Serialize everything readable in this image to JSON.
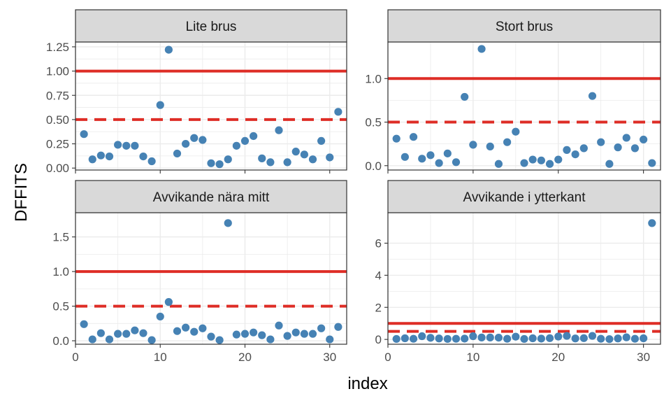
{
  "chart_data": {
    "type": "scatter",
    "xlabel": "index",
    "ylabel": "DFFITS",
    "x_ticks": [
      0,
      10,
      20,
      30
    ],
    "xlim": [
      0,
      32
    ],
    "grid": true,
    "colors": {
      "points": "#4682B4",
      "reference_lines": "#DE2D26",
      "strip_bg": "#D9D9D9",
      "grid": "#EBEBEB",
      "border": "#333333"
    },
    "reference_lines": [
      {
        "y": 1.0,
        "style": "solid"
      },
      {
        "y": 0.5,
        "style": "dashed"
      }
    ],
    "panels": [
      {
        "title": "Lite brus",
        "ylim": [
          -0.02,
          1.3
        ],
        "y_ticks": [
          "0.00",
          "0.25",
          "0.50",
          "0.75",
          "1.00",
          "1.25"
        ],
        "x": [
          1,
          2,
          3,
          4,
          5,
          6,
          7,
          8,
          9,
          10,
          11,
          12,
          13,
          14,
          15,
          16,
          17,
          18,
          19,
          20,
          21,
          22,
          23,
          24,
          25,
          26,
          27,
          28,
          29,
          30,
          31
        ],
        "y": [
          0.35,
          0.09,
          0.13,
          0.12,
          0.24,
          0.23,
          0.23,
          0.12,
          0.07,
          0.65,
          1.22,
          0.15,
          0.25,
          0.31,
          0.29,
          0.05,
          0.04,
          0.09,
          0.23,
          0.28,
          0.33,
          0.1,
          0.06,
          0.39,
          0.06,
          0.17,
          0.14,
          0.09,
          0.28,
          0.11,
          0.58
        ]
      },
      {
        "title": "Stort brus",
        "ylim": [
          -0.05,
          1.42
        ],
        "y_ticks": [
          "0.0",
          "0.5",
          "1.0"
        ],
        "x": [
          1,
          2,
          3,
          4,
          5,
          6,
          7,
          8,
          9,
          10,
          11,
          12,
          13,
          14,
          15,
          16,
          17,
          18,
          19,
          20,
          21,
          22,
          23,
          24,
          25,
          26,
          27,
          28,
          29,
          30,
          31
        ],
        "y": [
          0.31,
          0.1,
          0.33,
          0.08,
          0.12,
          0.03,
          0.14,
          0.04,
          0.79,
          0.24,
          1.34,
          0.22,
          0.02,
          0.27,
          0.39,
          0.03,
          0.07,
          0.06,
          0.02,
          0.07,
          0.18,
          0.13,
          0.2,
          0.8,
          0.27,
          0.02,
          0.21,
          0.32,
          0.2,
          0.3,
          0.03
        ]
      },
      {
        "title": "Avvikande nära mitt",
        "ylim": [
          -0.05,
          1.85
        ],
        "y_ticks": [
          "0.0",
          "0.5",
          "1.0",
          "1.5"
        ],
        "x": [
          1,
          2,
          3,
          4,
          5,
          6,
          7,
          8,
          9,
          10,
          11,
          12,
          13,
          14,
          15,
          16,
          17,
          18,
          19,
          20,
          21,
          22,
          23,
          24,
          25,
          26,
          27,
          28,
          29,
          30,
          31
        ],
        "y": [
          0.24,
          0.02,
          0.11,
          0.02,
          0.1,
          0.1,
          0.15,
          0.11,
          0.01,
          0.35,
          0.56,
          0.14,
          0.19,
          0.13,
          0.18,
          0.06,
          0.01,
          1.7,
          0.09,
          0.1,
          0.12,
          0.08,
          0.02,
          0.22,
          0.07,
          0.12,
          0.1,
          0.1,
          0.18,
          0.02,
          0.2
        ]
      },
      {
        "title": "Avvikande i ytterkant",
        "ylim": [
          -0.3,
          7.9
        ],
        "y_ticks": [
          "0",
          "2",
          "4",
          "6"
        ],
        "x": [
          1,
          2,
          3,
          4,
          5,
          6,
          7,
          8,
          9,
          10,
          11,
          12,
          13,
          14,
          15,
          16,
          17,
          18,
          19,
          20,
          21,
          22,
          23,
          24,
          25,
          26,
          27,
          28,
          29,
          30,
          31
        ],
        "y": [
          0.03,
          0.07,
          0.04,
          0.2,
          0.1,
          0.06,
          0.03,
          0.04,
          0.05,
          0.2,
          0.12,
          0.12,
          0.11,
          0.04,
          0.17,
          0.03,
          0.07,
          0.05,
          0.08,
          0.18,
          0.22,
          0.06,
          0.08,
          0.22,
          0.04,
          0.02,
          0.06,
          0.13,
          0.04,
          0.07,
          7.25
        ]
      }
    ]
  }
}
